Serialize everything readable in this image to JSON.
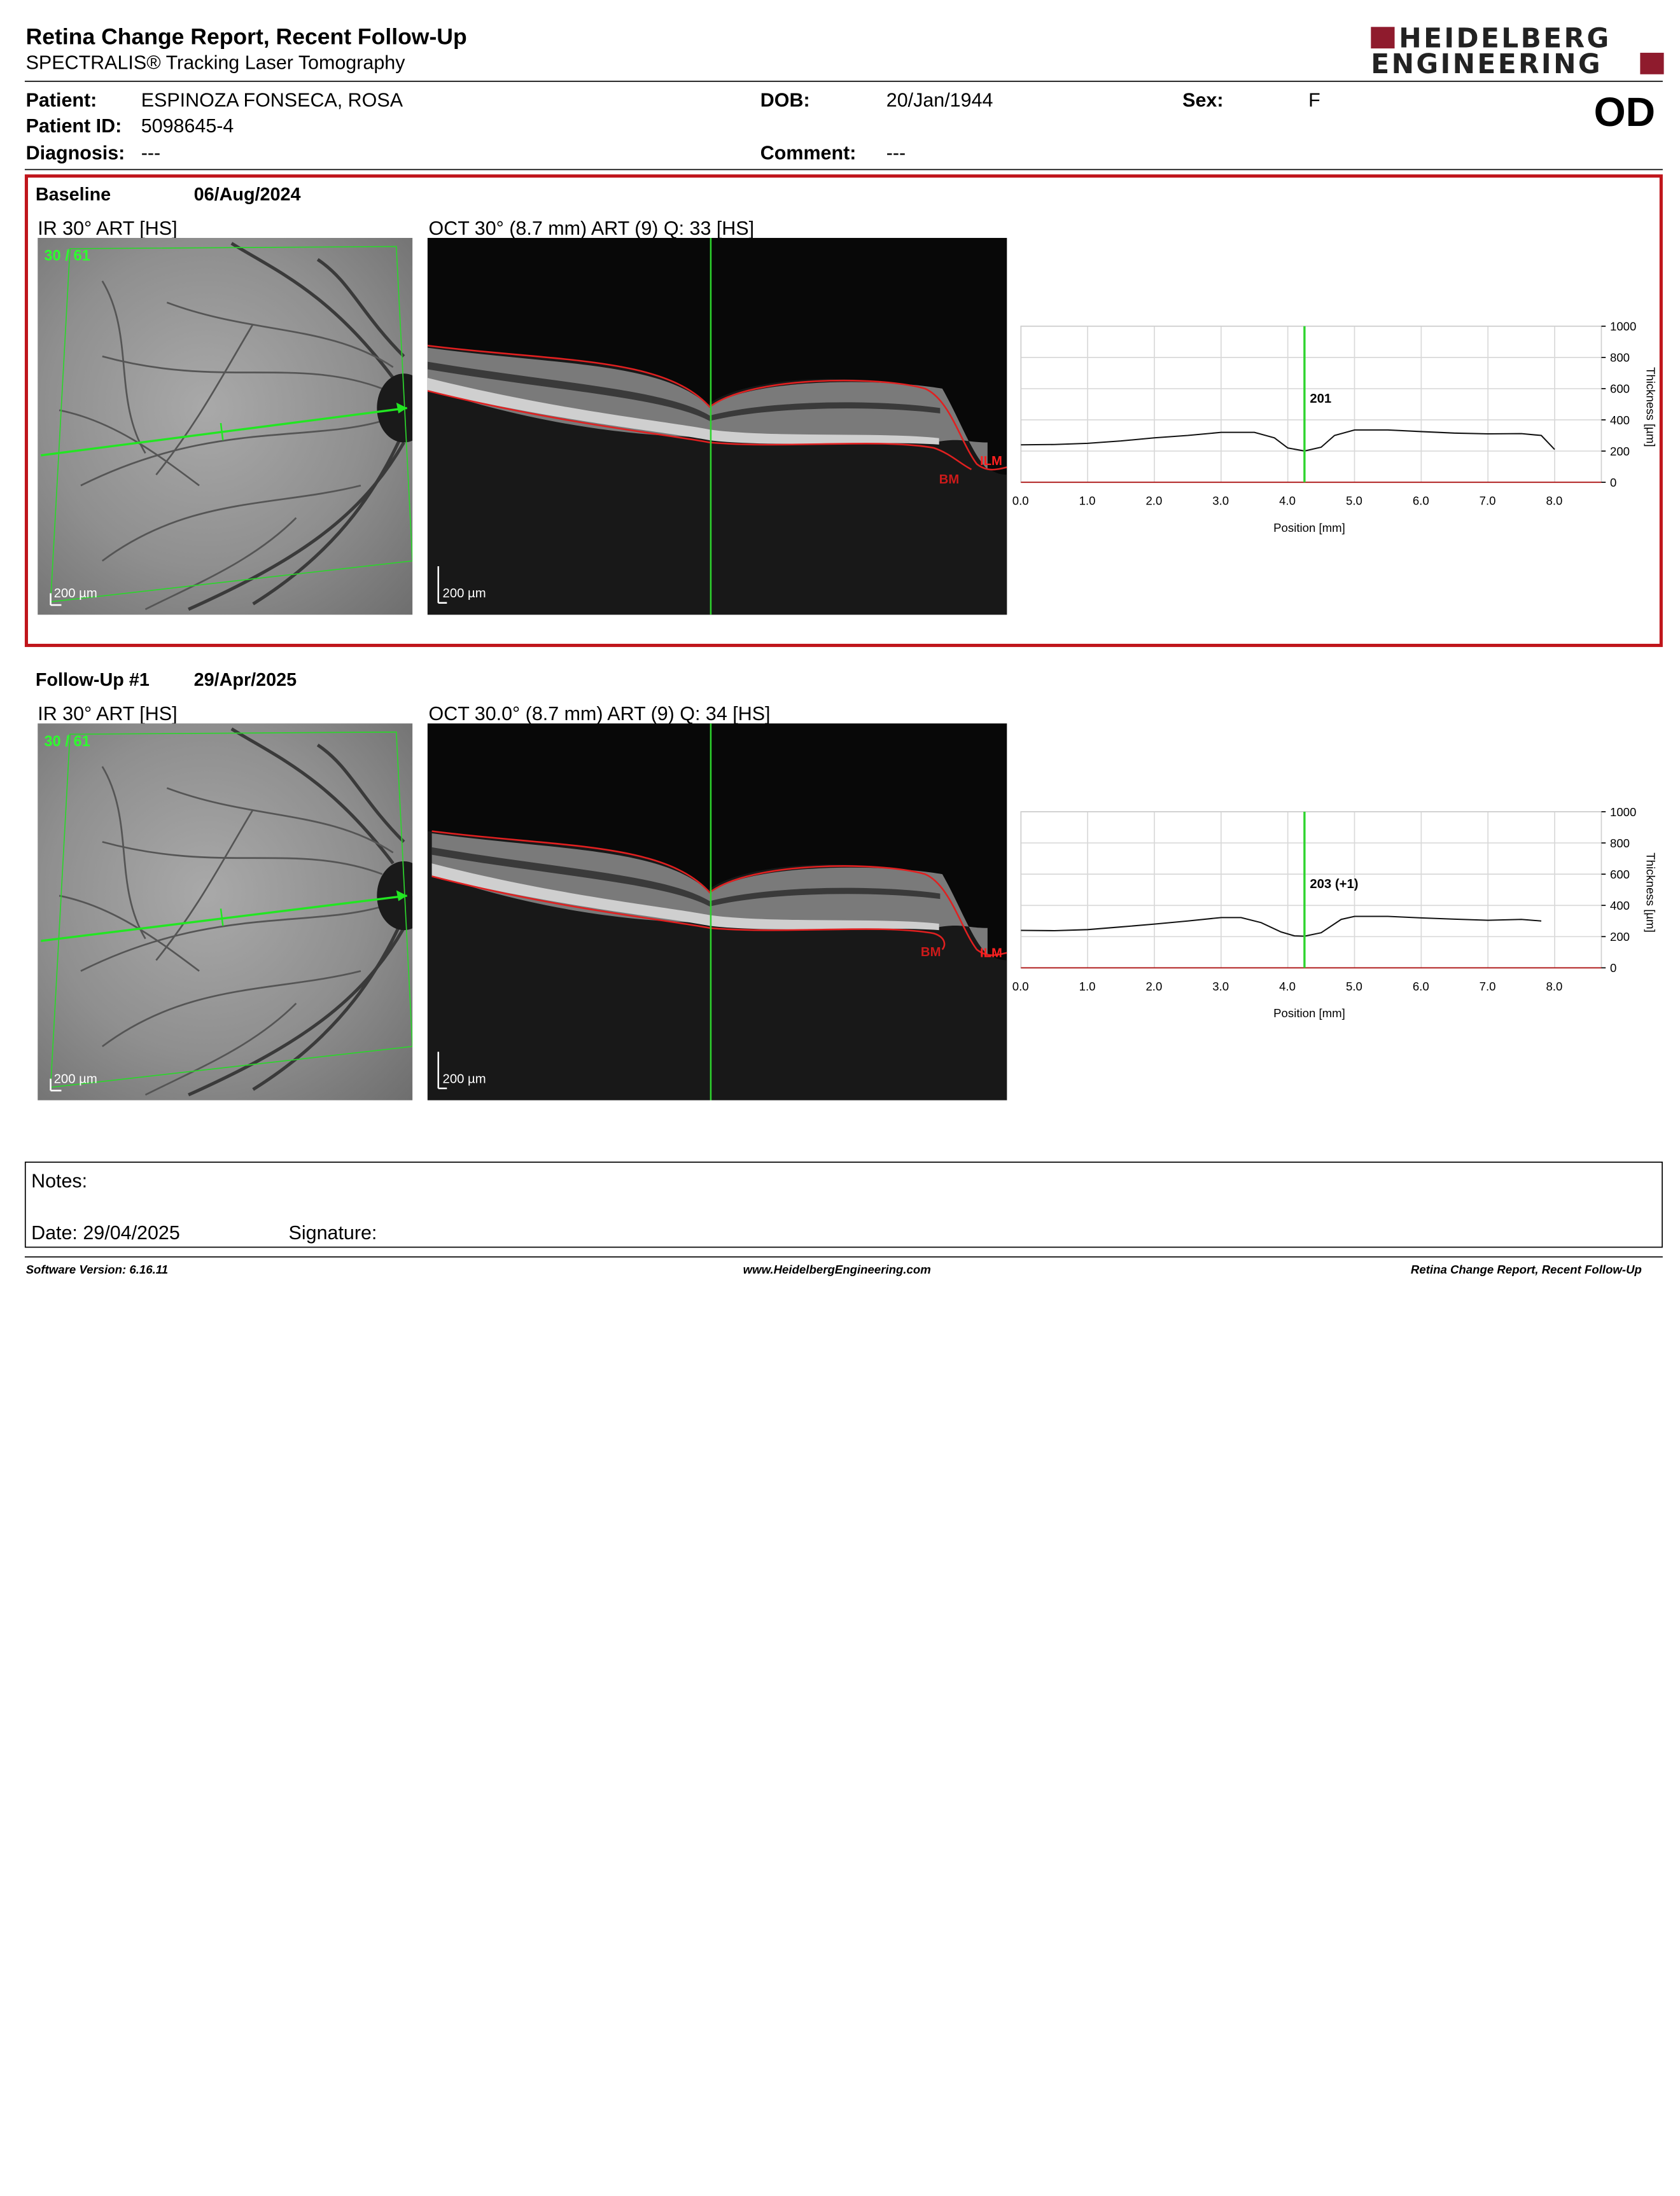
{
  "header": {
    "title": "Retina Change Report, Recent Follow-Up",
    "subtitle": "SPECTRALIS® Tracking Laser Tomography",
    "logo_line1": "HEIDELBERG",
    "logo_line2": "ENGINEERING",
    "eye": "OD"
  },
  "patient": {
    "patient_label": "Patient:",
    "patient_value": "ESPINOZA FONSECA, ROSA",
    "id_label": "Patient ID:",
    "id_value": "5098645-4",
    "diagnosis_label": "Diagnosis:",
    "diagnosis_value": "---",
    "dob_label": "DOB:",
    "dob_value": "20/Jan/1944",
    "comment_label": "Comment:",
    "comment_value": "---",
    "sex_label": "Sex:",
    "sex_value": "F"
  },
  "exams": [
    {
      "label": "Baseline",
      "date": "06/Aug/2024",
      "ir_caption": "IR 30° ART [HS]",
      "oct_caption": "OCT 30° (8.7 mm) ART (9) Q: 33 [HS]",
      "fraction": "30 / 61",
      "ir_scale": "200 µm",
      "oct_scale": "200 µm",
      "bm_label": "BM",
      "ilm_label": "ILM",
      "readout": "201"
    },
    {
      "label": "Follow-Up #1",
      "date": "29/Apr/2025",
      "ir_caption": "IR 30° ART [HS]",
      "oct_caption": "OCT 30.0° (8.7 mm) ART (9) Q: 34 [HS]",
      "fraction": "30 / 61",
      "ir_scale": "200 µm",
      "oct_scale": "200 µm",
      "bm_label": "BM",
      "ilm_label": "ILM",
      "readout": "203 (+1)"
    }
  ],
  "chart_data": [
    {
      "type": "line",
      "xlabel": "Position [mm]",
      "ylabel": "Thickness [µm]",
      "xlim": [
        0,
        8.7
      ],
      "ylim": [
        0,
        1000
      ],
      "x_ticks": [
        "0.0",
        "1.0",
        "2.0",
        "3.0",
        "4.0",
        "5.0",
        "6.0",
        "7.0",
        "8.0"
      ],
      "y_ticks": [
        "1000",
        "800",
        "600",
        "400",
        "200",
        "0"
      ],
      "grid": true,
      "cursor_x": 4.25,
      "cursor_label": "201",
      "series": [
        {
          "x": [
            0.0,
            0.5,
            1.0,
            1.5,
            2.0,
            2.5,
            3.0,
            3.5,
            3.8,
            4.0,
            4.25,
            4.5,
            4.7,
            5.0,
            5.5,
            6.0,
            6.5,
            7.0,
            7.5,
            7.8,
            8.0
          ],
          "values": [
            240,
            242,
            250,
            265,
            285,
            300,
            320,
            320,
            285,
            220,
            201,
            225,
            300,
            335,
            335,
            325,
            315,
            310,
            312,
            300,
            210
          ]
        }
      ]
    },
    {
      "type": "line",
      "xlabel": "Position [mm]",
      "ylabel": "Thickness [µm]",
      "xlim": [
        0,
        8.7
      ],
      "ylim": [
        0,
        1000
      ],
      "x_ticks": [
        "0.0",
        "1.0",
        "2.0",
        "3.0",
        "4.0",
        "5.0",
        "6.0",
        "7.0",
        "8.0"
      ],
      "y_ticks": [
        "1000",
        "800",
        "600",
        "400",
        "200",
        "0"
      ],
      "grid": true,
      "cursor_x": 4.25,
      "cursor_label": "203 (+1)",
      "series": [
        {
          "x": [
            0.0,
            0.5,
            1.0,
            1.5,
            2.0,
            2.5,
            3.0,
            3.3,
            3.6,
            3.9,
            4.1,
            4.25,
            4.5,
            4.8,
            5.0,
            5.5,
            6.0,
            6.5,
            7.0,
            7.5,
            7.8
          ],
          "values": [
            240,
            238,
            245,
            262,
            280,
            300,
            322,
            322,
            290,
            230,
            205,
            203,
            225,
            310,
            330,
            330,
            320,
            312,
            305,
            310,
            300
          ]
        }
      ]
    }
  ],
  "notes": {
    "notes_label": "Notes:",
    "date_label": "Date: 29/04/2025",
    "signature_label": "Signature:"
  },
  "footer": {
    "software": "Software Version: 6.16.11",
    "url": "www.HeidelbergEngineering.com",
    "report_name": "Retina Change Report, Recent Follow-Up"
  }
}
